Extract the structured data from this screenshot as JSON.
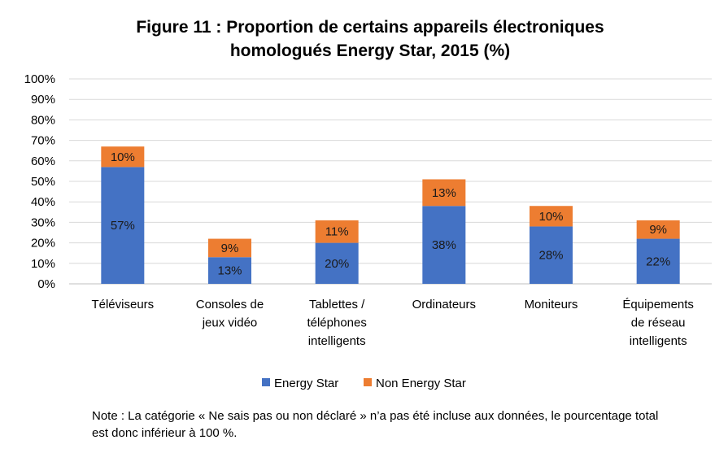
{
  "chart_data": {
    "type": "bar",
    "stacked": true,
    "title": "Figure 11 : Proportion de certains appareils électroniques homologués Energy Star, 2015 (%)",
    "title_lines": [
      "Figure 11 : Proportion de certains appareils électroniques",
      "homologués Energy Star, 2015 (%)"
    ],
    "categories": [
      "Téléviseurs",
      "Consoles de jeux vidéo",
      "Tablettes / téléphones intelligents",
      "Ordinateurs",
      "Moniteurs",
      "Équipements de réseau intelligents"
    ],
    "category_lines": [
      [
        "Téléviseurs"
      ],
      [
        "Consoles de",
        "jeux vidéo"
      ],
      [
        "Tablettes /",
        "téléphones",
        "intelligents"
      ],
      [
        "Ordinateurs"
      ],
      [
        "Moniteurs"
      ],
      [
        "Équipements",
        "de réseau",
        "intelligents"
      ]
    ],
    "series": [
      {
        "name": "Energy Star",
        "color": "#4472C4",
        "values": [
          57,
          13,
          20,
          38,
          28,
          22
        ]
      },
      {
        "name": "Non Energy Star",
        "color": "#ED7D31",
        "values": [
          10,
          9,
          11,
          13,
          10,
          9
        ]
      }
    ],
    "ylim": [
      0,
      100
    ],
    "yticks": [
      "0%",
      "10%",
      "20%",
      "30%",
      "40%",
      "50%",
      "60%",
      "70%",
      "80%",
      "90%",
      "100%"
    ],
    "value_suffix": "%",
    "grid": true,
    "legend_position": "bottom",
    "xlabel": "",
    "ylabel": ""
  },
  "note": "Note : La catégorie « Ne sais pas ou non déclaré » n’a pas été incluse aux données, le pourcentage total est donc inférieur à 100 %."
}
